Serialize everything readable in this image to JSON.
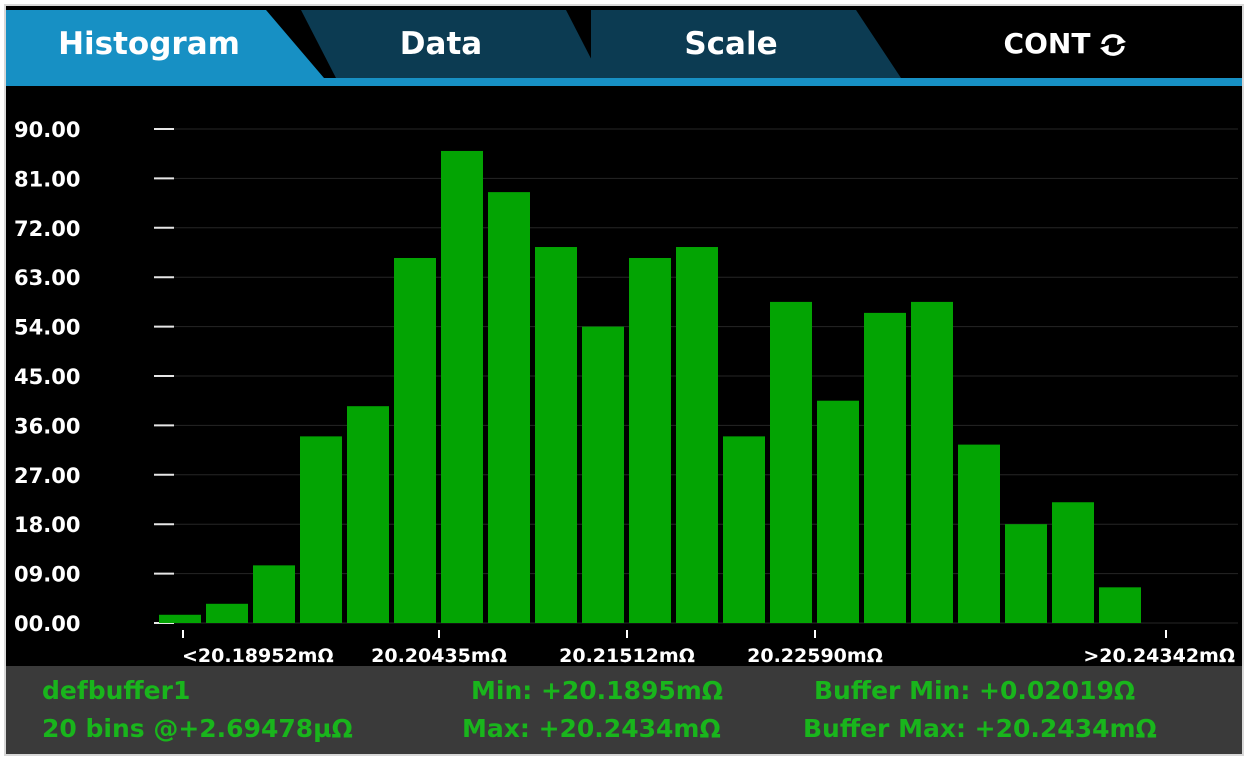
{
  "tabs": [
    {
      "label": "Histogram",
      "active": true
    },
    {
      "label": "Data",
      "active": false
    },
    {
      "label": "Scale",
      "active": false
    }
  ],
  "cont": {
    "label": "CONT",
    "icon": "refresh-icon"
  },
  "colors": {
    "bar": "#03a403",
    "active_tab": "#1790c4",
    "inactive_tab": "#0c3b52",
    "footer_text": "#19b51c",
    "footer_bg": "#3a3a3a"
  },
  "chart_data": {
    "type": "bar",
    "title": "",
    "xlabel": "",
    "ylabel": "",
    "ylim": [
      0,
      90
    ],
    "y_ticks": [
      "00.00",
      "09.00",
      "18.00",
      "27.00",
      "36.00",
      "45.00",
      "54.00",
      "63.00",
      "72.00",
      "81.00",
      "90.00"
    ],
    "x_ticks": [
      {
        "label": "<20.18952mΩ",
        "bin": 0
      },
      {
        "label": "20.20435mΩ",
        "bin": 6
      },
      {
        "label": "20.21512mΩ",
        "bin": 10
      },
      {
        "label": "20.22590mΩ",
        "bin": 14
      },
      {
        "label": ">20.24342mΩ",
        "bin": 21.5
      }
    ],
    "grid": true,
    "bins": 21,
    "values": [
      1.5,
      3.5,
      10.5,
      34,
      39.5,
      66.5,
      86,
      78.5,
      68.5,
      54,
      66.5,
      68.5,
      34,
      58.5,
      40.5,
      56.5,
      58.5,
      32.5,
      18,
      22,
      6.5
    ]
  },
  "footer": {
    "buffer": "defbuffer1",
    "bins": "20 bins @+2.69478µΩ",
    "min": "Min: +20.1895mΩ",
    "max": "Max: +20.2434mΩ",
    "buffer_min": "Buffer Min: +0.02019Ω",
    "buffer_max": "Buffer Max: +20.2434mΩ"
  }
}
